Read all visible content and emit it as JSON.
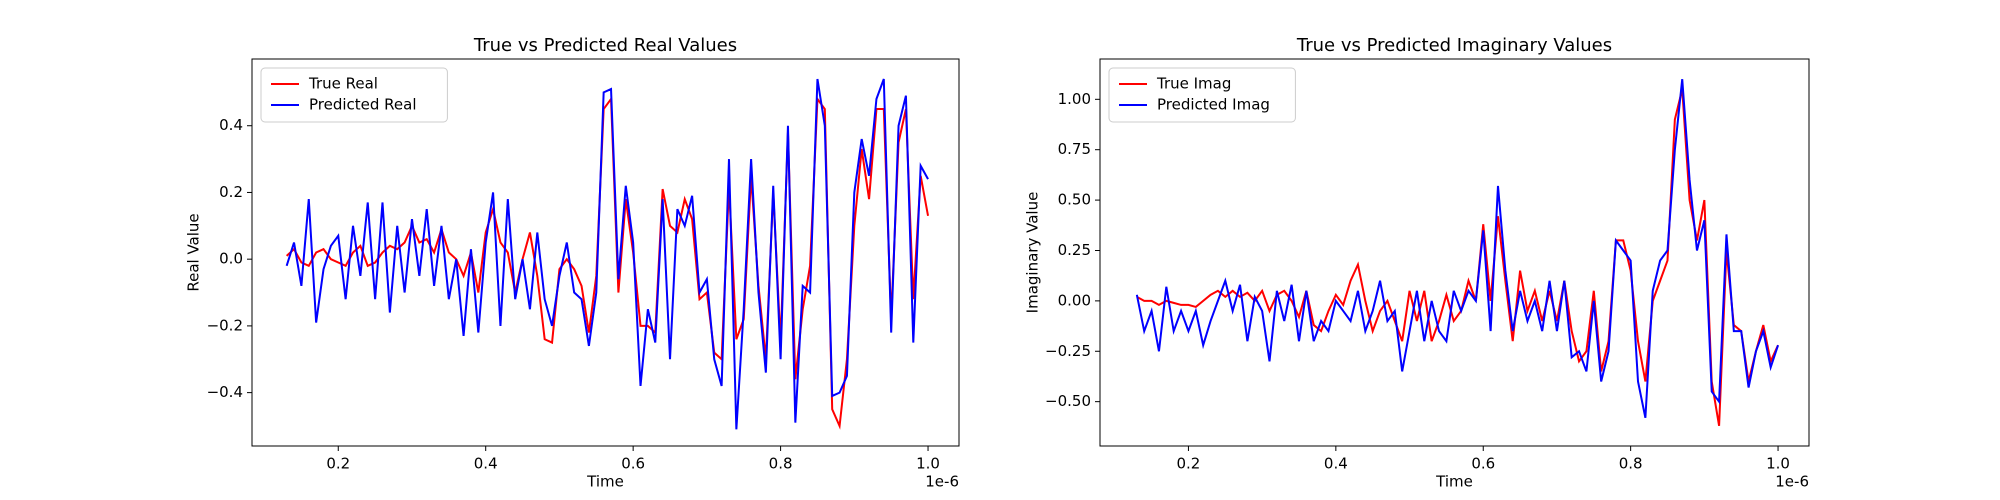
{
  "chart_data": [
    {
      "type": "line",
      "title": "True vs Predicted Real Values",
      "xlabel": "Time",
      "ylabel": "Real Value",
      "x_offset_text": "1e-6",
      "legend": "upper left",
      "x": [
        0.13,
        0.14,
        0.15,
        0.16,
        0.17,
        0.18,
        0.19,
        0.2,
        0.21,
        0.22,
        0.23,
        0.24,
        0.25,
        0.26,
        0.27,
        0.28,
        0.29,
        0.3,
        0.31,
        0.32,
        0.33,
        0.34,
        0.35,
        0.36,
        0.37,
        0.38,
        0.39,
        0.4,
        0.41,
        0.42,
        0.43,
        0.44,
        0.45,
        0.46,
        0.47,
        0.48,
        0.49,
        0.5,
        0.51,
        0.52,
        0.53,
        0.54,
        0.55,
        0.56,
        0.57,
        0.58,
        0.59,
        0.6,
        0.61,
        0.62,
        0.63,
        0.64,
        0.65,
        0.66,
        0.67,
        0.68,
        0.69,
        0.7,
        0.71,
        0.72,
        0.73,
        0.74,
        0.75,
        0.76,
        0.77,
        0.78,
        0.79,
        0.8,
        0.81,
        0.82,
        0.83,
        0.84,
        0.85,
        0.86,
        0.87,
        0.88,
        0.89,
        0.9,
        0.91,
        0.92,
        0.93,
        0.94,
        0.95,
        0.96,
        0.97,
        0.98,
        0.99,
        1.0
      ],
      "series": [
        {
          "name": "True Real",
          "color": "#ff0000",
          "values": [
            0.01,
            0.03,
            -0.01,
            -0.02,
            0.02,
            0.03,
            0.0,
            -0.01,
            -0.02,
            0.02,
            0.04,
            -0.02,
            -0.01,
            0.02,
            0.04,
            0.03,
            0.05,
            0.1,
            0.05,
            0.06,
            0.02,
            0.09,
            0.02,
            0.0,
            -0.05,
            0.02,
            -0.1,
            0.08,
            0.15,
            0.05,
            0.02,
            -0.1,
            0.0,
            0.08,
            -0.05,
            -0.24,
            -0.25,
            -0.03,
            0.0,
            -0.03,
            -0.08,
            -0.22,
            -0.05,
            0.45,
            0.48,
            -0.1,
            0.18,
            0.02,
            -0.2,
            -0.2,
            -0.22,
            0.21,
            0.1,
            0.08,
            0.18,
            0.12,
            -0.12,
            -0.1,
            -0.28,
            -0.3,
            0.22,
            -0.24,
            -0.18,
            0.25,
            -0.08,
            -0.3,
            0.2,
            -0.25,
            0.38,
            -0.36,
            -0.15,
            -0.02,
            0.48,
            0.45,
            -0.45,
            -0.5,
            -0.3,
            0.1,
            0.33,
            0.18,
            0.45,
            0.45,
            -0.18,
            0.35,
            0.45,
            -0.12,
            0.25,
            0.13
          ]
        },
        {
          "name": "Predicted Real",
          "color": "#0000ff",
          "values": [
            -0.02,
            0.05,
            -0.08,
            0.18,
            -0.19,
            -0.03,
            0.04,
            0.07,
            -0.12,
            0.1,
            -0.05,
            0.17,
            -0.12,
            0.17,
            -0.16,
            0.1,
            -0.1,
            0.12,
            -0.05,
            0.15,
            -0.08,
            0.1,
            -0.12,
            0.0,
            -0.23,
            0.03,
            -0.22,
            0.05,
            0.2,
            -0.2,
            0.18,
            -0.12,
            0.0,
            -0.15,
            0.08,
            -0.12,
            -0.2,
            -0.05,
            0.05,
            -0.1,
            -0.12,
            -0.26,
            -0.1,
            0.5,
            0.51,
            -0.06,
            0.22,
            0.05,
            -0.38,
            -0.15,
            -0.25,
            0.18,
            -0.3,
            0.15,
            0.1,
            0.19,
            -0.1,
            -0.06,
            -0.3,
            -0.38,
            0.3,
            -0.51,
            -0.15,
            0.3,
            -0.1,
            -0.34,
            0.22,
            -0.3,
            0.4,
            -0.49,
            -0.08,
            -0.1,
            0.54,
            0.4,
            -0.41,
            -0.4,
            -0.35,
            0.2,
            0.36,
            0.25,
            0.48,
            0.54,
            -0.22,
            0.4,
            0.49,
            -0.25,
            0.28,
            0.24
          ]
        }
      ],
      "xlim": [
        0.083,
        1.042
      ],
      "xticks": [
        0.2,
        0.4,
        0.6,
        0.8,
        {
          "value": 1,
          "label": "1.0"
        }
      ],
      "ylim": [
        -0.56,
        0.6
      ],
      "yticks": [
        {
          "value": -0.4,
          "label": "−0.4"
        },
        {
          "value": -0.2,
          "label": "−0.2"
        },
        {
          "value": 0,
          "label": "0.0"
        },
        0.2,
        0.4
      ]
    },
    {
      "type": "line",
      "title": "True vs Predicted Imaginary Values",
      "xlabel": "Time",
      "ylabel": "Imaginary Value",
      "x_offset_text": "1e-6",
      "legend": "upper left",
      "x": [
        0.13,
        0.14,
        0.15,
        0.16,
        0.17,
        0.18,
        0.19,
        0.2,
        0.21,
        0.22,
        0.23,
        0.24,
        0.25,
        0.26,
        0.27,
        0.28,
        0.29,
        0.3,
        0.31,
        0.32,
        0.33,
        0.34,
        0.35,
        0.36,
        0.37,
        0.38,
        0.39,
        0.4,
        0.41,
        0.42,
        0.43,
        0.44,
        0.45,
        0.46,
        0.47,
        0.48,
        0.49,
        0.5,
        0.51,
        0.52,
        0.53,
        0.54,
        0.55,
        0.56,
        0.57,
        0.58,
        0.59,
        0.6,
        0.61,
        0.62,
        0.63,
        0.64,
        0.65,
        0.66,
        0.67,
        0.68,
        0.69,
        0.7,
        0.71,
        0.72,
        0.73,
        0.74,
        0.75,
        0.76,
        0.77,
        0.78,
        0.79,
        0.8,
        0.81,
        0.82,
        0.83,
        0.84,
        0.85,
        0.86,
        0.87,
        0.88,
        0.89,
        0.9,
        0.91,
        0.92,
        0.93,
        0.94,
        0.95,
        0.96,
        0.97,
        0.98,
        0.99,
        1.0
      ],
      "series": [
        {
          "name": "True Imag",
          "color": "#ff0000",
          "values": [
            0.02,
            0.0,
            0.0,
            -0.02,
            0.0,
            -0.01,
            -0.02,
            -0.02,
            -0.03,
            0.0,
            0.03,
            0.05,
            0.02,
            0.05,
            0.02,
            0.04,
            0.0,
            0.05,
            -0.05,
            0.03,
            0.05,
            0.0,
            -0.08,
            0.05,
            -0.12,
            -0.15,
            -0.05,
            0.03,
            -0.02,
            0.1,
            0.18,
            0.0,
            -0.15,
            -0.05,
            0.0,
            -0.1,
            -0.2,
            0.05,
            -0.1,
            0.05,
            -0.2,
            -0.1,
            0.03,
            -0.1,
            -0.05,
            0.1,
            0.0,
            0.38,
            0.0,
            0.42,
            0.1,
            -0.2,
            0.15,
            -0.05,
            0.05,
            -0.1,
            0.05,
            -0.1,
            0.1,
            -0.15,
            -0.3,
            -0.25,
            0.05,
            -0.35,
            -0.2,
            0.3,
            0.3,
            0.15,
            -0.2,
            -0.4,
            0.0,
            0.1,
            0.2,
            0.9,
            1.05,
            0.5,
            0.3,
            0.5,
            -0.4,
            -0.62,
            0.25,
            -0.12,
            -0.15,
            -0.4,
            -0.25,
            -0.12,
            -0.3,
            -0.22
          ]
        },
        {
          "name": "Predicted Imag",
          "color": "#0000ff",
          "values": [
            0.03,
            -0.15,
            -0.05,
            -0.25,
            0.07,
            -0.15,
            -0.05,
            -0.15,
            -0.05,
            -0.22,
            -0.1,
            0.0,
            0.1,
            -0.05,
            0.08,
            -0.2,
            0.02,
            -0.05,
            -0.3,
            0.05,
            -0.1,
            0.08,
            -0.2,
            0.05,
            -0.2,
            -0.1,
            -0.15,
            0.0,
            -0.05,
            -0.1,
            0.05,
            -0.15,
            -0.05,
            0.1,
            -0.1,
            -0.05,
            -0.35,
            -0.15,
            0.05,
            -0.2,
            0.0,
            -0.15,
            -0.2,
            0.05,
            -0.05,
            0.05,
            0.0,
            0.35,
            -0.15,
            0.57,
            0.15,
            -0.15,
            0.05,
            -0.1,
            0.0,
            -0.15,
            0.1,
            -0.15,
            0.1,
            -0.28,
            -0.25,
            -0.35,
            0.0,
            -0.4,
            -0.25,
            0.3,
            0.25,
            0.2,
            -0.4,
            -0.58,
            0.05,
            0.2,
            0.25,
            0.75,
            1.1,
            0.6,
            0.25,
            0.4,
            -0.45,
            -0.5,
            0.33,
            -0.15,
            -0.15,
            -0.43,
            -0.25,
            -0.15,
            -0.33,
            -0.22
          ]
        }
      ],
      "xlim": [
        0.08,
        1.042
      ],
      "xticks": [
        0.2,
        0.4,
        0.6,
        0.8,
        {
          "value": 1,
          "label": "1.0"
        }
      ],
      "ylim": [
        -0.72,
        1.2
      ],
      "yticks": [
        {
          "value": -0.5,
          "label": "−0.50"
        },
        {
          "value": -0.25,
          "label": "−0.25"
        },
        {
          "value": 0,
          "label": "0.00"
        },
        0.25,
        {
          "value": 0.5,
          "label": "0.50"
        },
        0.75,
        {
          "value": 1,
          "label": "1.00"
        }
      ]
    }
  ]
}
